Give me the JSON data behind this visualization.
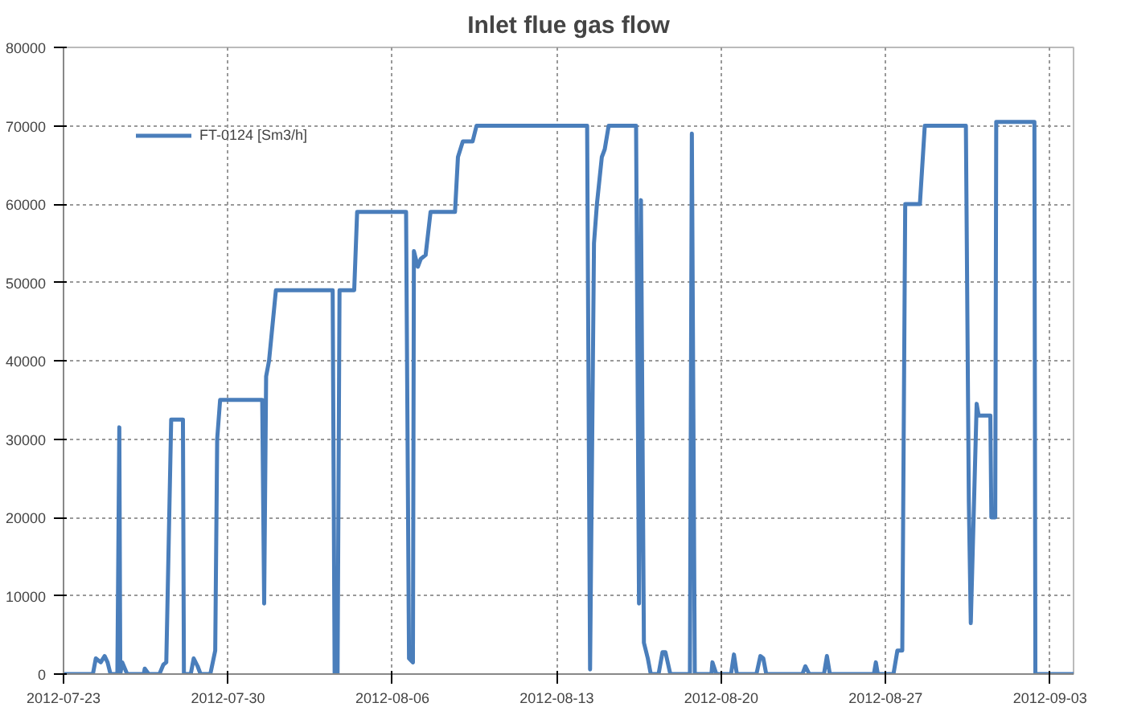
{
  "chart_data": {
    "type": "line",
    "title": "Inlet flue gas flow",
    "xlim": [
      "2012-07-23",
      "2012-09-04"
    ],
    "ylim": [
      0,
      80000
    ],
    "xticks": [
      "2012-07-23",
      "2012-07-30",
      "2012-08-06",
      "2012-08-13",
      "2012-08-20",
      "2012-08-27",
      "2012-09-03"
    ],
    "yticks": [
      0,
      10000,
      20000,
      30000,
      40000,
      50000,
      60000,
      70000,
      80000
    ],
    "grid": true,
    "legend": "top left",
    "marker": "none",
    "line_style": "solid",
    "series": [
      {
        "name": "FT-0124 [Sm3/h]",
        "color": "#4a7ebb",
        "x": [
          "2012-07-23T00:00",
          "2012-07-24T06:00",
          "2012-07-24T09:00",
          "2012-07-24T14:00",
          "2012-07-24T18:00",
          "2012-07-24T21:00",
          "2012-07-25T00:00",
          "2012-07-25T07:00",
          "2012-07-25T09:00",
          "2012-07-25T10:00",
          "2012-07-25T12:00",
          "2012-07-25T17:00",
          "2012-07-26T10:00",
          "2012-07-26T11:00",
          "2012-07-26T15:00",
          "2012-07-27T02:00",
          "2012-07-27T06:00",
          "2012-07-27T09:00",
          "2012-07-27T14:00",
          "2012-07-28T02:00",
          "2012-07-28T03:00",
          "2012-07-28T10:00",
          "2012-07-28T13:00",
          "2012-07-28T17:00",
          "2012-07-28T20:00",
          "2012-07-29T06:00",
          "2012-07-29T11:00",
          "2012-07-29T13:00",
          "2012-07-29T16:00",
          "2012-07-31T11:00",
          "2012-07-31T13:00",
          "2012-07-31T15:00",
          "2012-07-31T18:00",
          "2012-08-01T01:00",
          "2012-08-03T11:00",
          "2012-08-03T13:00",
          "2012-08-03T16:00",
          "2012-08-03T18:00",
          "2012-08-04T09:00",
          "2012-08-04T12:00",
          "2012-08-06T14:00",
          "2012-08-06T17:00",
          "2012-08-06T21:00",
          "2012-08-06T22:00",
          "2012-08-07T02:00",
          "2012-08-07T05:00",
          "2012-08-07T10:00",
          "2012-08-07T15:00",
          "2012-08-08T16:00",
          "2012-08-08T19:00",
          "2012-08-09T00:00",
          "2012-08-09T10:00",
          "2012-08-09T14:00",
          "2012-08-14T07:00",
          "2012-08-14T10:00",
          "2012-08-14T14:00",
          "2012-08-14T17:00",
          "2012-08-14T22:00",
          "2012-08-15T01:00",
          "2012-08-15T05:00",
          "2012-08-16T09:00",
          "2012-08-16T12:00",
          "2012-08-16T14:00",
          "2012-08-16T17:00",
          "2012-08-16T21:00",
          "2012-08-17T00:00",
          "2012-08-17T08:00",
          "2012-08-17T12:00",
          "2012-08-17T15:00",
          "2012-08-17T20:00",
          "2012-08-18T16:00",
          "2012-08-18T18:00",
          "2012-08-18T21:00",
          "2012-08-19T14:00",
          "2012-08-19T15:00",
          "2012-08-19T19:00",
          "2012-08-20T10:00",
          "2012-08-20T13:00",
          "2012-08-20T16:00",
          "2012-08-21T12:00",
          "2012-08-21T16:00",
          "2012-08-21T19:00",
          "2012-08-21T22:00",
          "2012-08-23T11:00",
          "2012-08-23T14:00",
          "2012-08-23T18:00",
          "2012-08-24T09:00",
          "2012-08-24T12:00",
          "2012-08-24T15:00",
          "2012-08-26T12:00",
          "2012-08-26T14:00",
          "2012-08-26T16:00",
          "2012-08-27T08:00",
          "2012-08-27T12:00",
          "2012-08-27T17:00",
          "2012-08-27T20:00",
          "2012-08-28T11:00",
          "2012-08-28T16:00",
          "2012-08-30T10:00",
          "2012-08-30T13:00",
          "2012-08-30T15:00",
          "2012-08-30T21:00",
          "2012-08-30T23:00",
          "2012-08-31T11:00",
          "2012-08-31T12:00",
          "2012-08-31T16:00",
          "2012-08-31T17:00",
          "2012-09-02T08:00",
          "2012-09-02T09:00",
          "2012-09-04T00:00"
        ],
        "values": [
          0,
          0,
          2000,
          1500,
          2300,
          1500,
          0,
          0,
          31500,
          0,
          1500,
          0,
          0,
          700,
          0,
          0,
          1200,
          1500,
          32500,
          32500,
          0,
          0,
          2000,
          1000,
          0,
          0,
          3000,
          30000,
          35000,
          35000,
          9000,
          38000,
          40000,
          49000,
          49000,
          0,
          0,
          49000,
          49000,
          59000,
          59000,
          2000,
          1500,
          54000,
          52000,
          53000,
          53500,
          59000,
          59000,
          66000,
          68000,
          68000,
          70000,
          70000,
          600,
          55000,
          60000,
          66000,
          67000,
          70000,
          70000,
          9000,
          60500,
          4000,
          2000,
          0,
          0,
          2800,
          2800,
          0,
          0,
          69000,
          0,
          0,
          1500,
          0,
          0,
          2500,
          0,
          0,
          2300,
          2000,
          0,
          0,
          1000,
          0,
          0,
          2300,
          0,
          0,
          1500,
          0,
          0,
          3000,
          3000,
          60000,
          60000,
          70000,
          70000,
          22000,
          6500,
          34500,
          33000,
          33000,
          20000,
          20000,
          70500,
          70500,
          0,
          0
        ]
      }
    ]
  }
}
